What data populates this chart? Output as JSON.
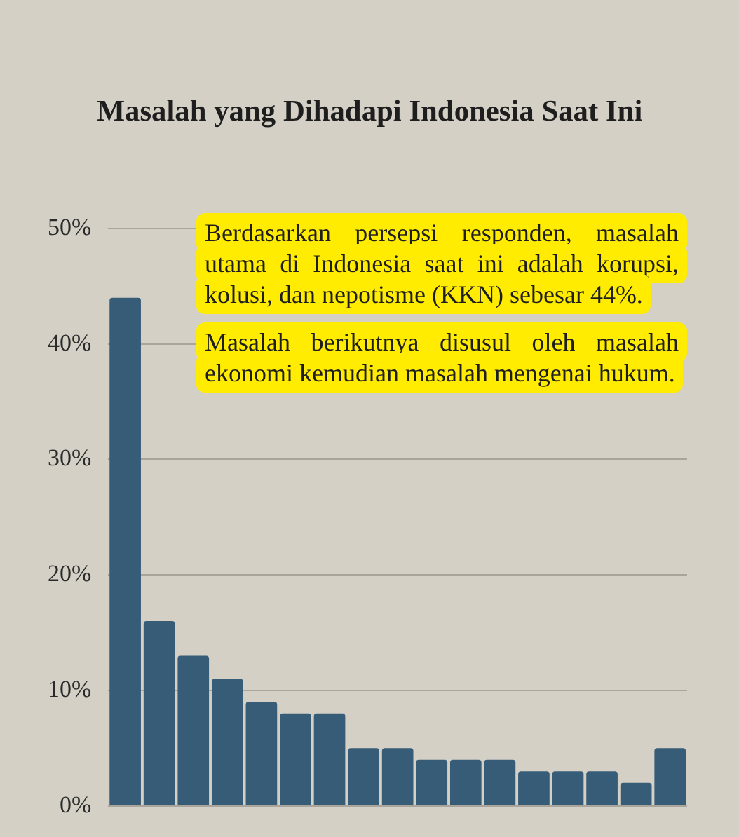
{
  "chart_data": {
    "type": "bar",
    "title": "Masalah yang Dihadapi Indonesia Saat Ini",
    "categories": [
      null,
      null,
      null,
      null,
      null,
      null,
      null,
      null,
      null,
      null,
      null,
      null,
      null,
      null,
      null,
      null,
      null
    ],
    "values": [
      44,
      16,
      13,
      11,
      9,
      8,
      8,
      5,
      5,
      4,
      4,
      4,
      3,
      3,
      3,
      2,
      5
    ],
    "color": "#365c78",
    "ylim": [
      0,
      50
    ],
    "yticks": [
      {
        "value": 0,
        "label": "0%"
      },
      {
        "value": 10,
        "label": "10%"
      },
      {
        "value": 20,
        "label": "20%"
      },
      {
        "value": 30,
        "label": "30%"
      },
      {
        "value": 40,
        "label": "40%"
      },
      {
        "value": 50,
        "label": "50%"
      }
    ],
    "grid": "y",
    "annotations": [
      "Berdasarkan persepsi responden, masalah utama di Indonesia saat ini adalah korupsi, kolusi, dan nepotisme (KKN) sebesar 44%.",
      "Masalah berikutnya disusul oleh masalah ekonomi kemudian masalah mengenai hukum."
    ]
  }
}
